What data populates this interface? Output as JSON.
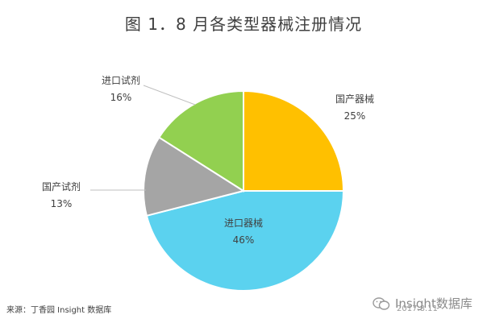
{
  "chart_data": {
    "type": "pie",
    "title": "图 1．8 月各类型器械注册情况",
    "slices": [
      {
        "label": "国产器械",
        "value": 25,
        "value_label": "25%",
        "color": "#FFC000"
      },
      {
        "label": "进口器械",
        "value": 46,
        "value_label": "46%",
        "color": "#5BD2EF"
      },
      {
        "label": "国产试剂",
        "value": 13,
        "value_label": "13%",
        "color": "#A5A5A5"
      },
      {
        "label": "进口试剂",
        "value": 16,
        "value_label": "16%",
        "color": "#92D050"
      }
    ]
  },
  "source": "来源：丁香园 Insight 数据库",
  "watermark": {
    "icon": "wechat-icon",
    "text": "Insight数据库",
    "date": "2017.8.11"
  }
}
